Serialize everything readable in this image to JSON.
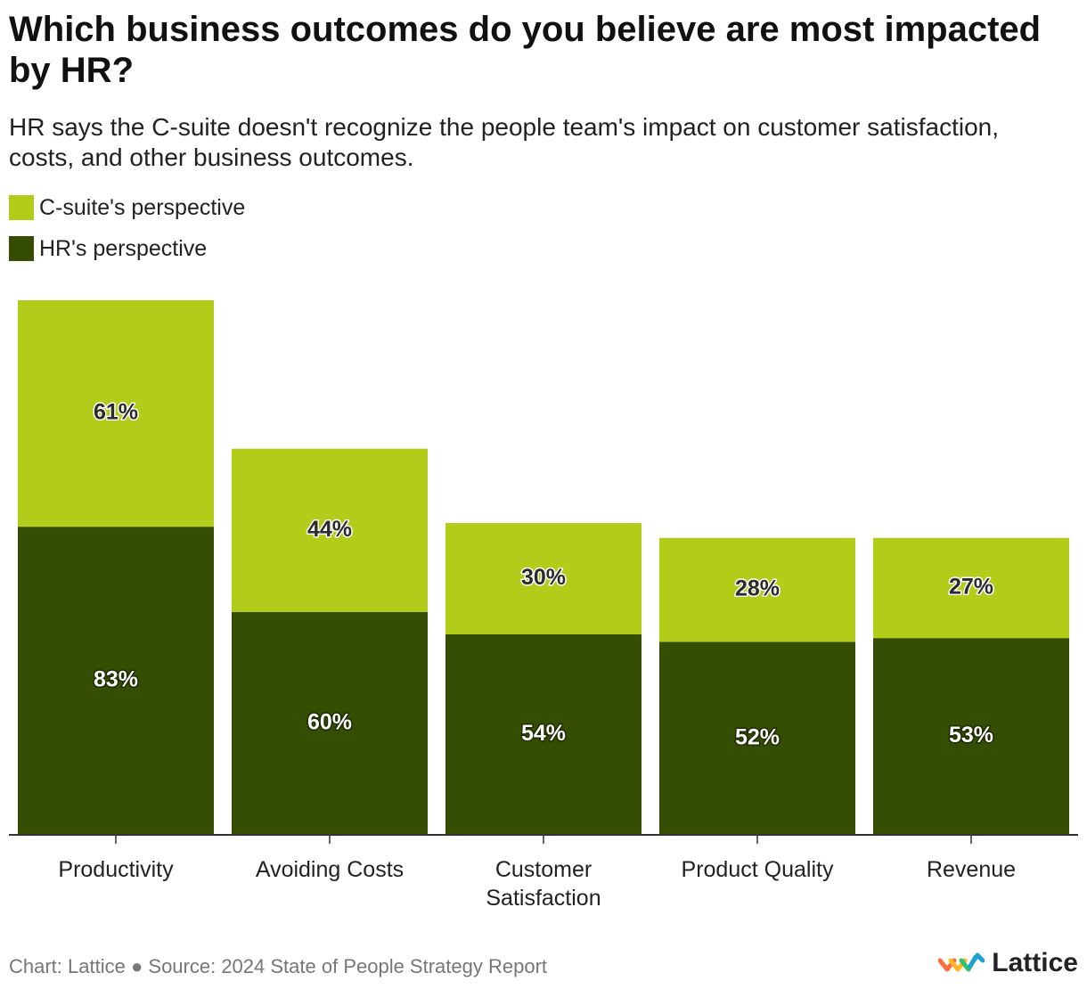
{
  "header": {
    "title": "Which business outcomes do you believe are most impacted by HR?",
    "subtitle": "HR says the C-suite doesn't recognize the people team's impact on customer satisfaction, costs, and other business outcomes."
  },
  "legend": {
    "csuite": {
      "label": "C-suite's perspective",
      "color": "#b3cc1a"
    },
    "hr": {
      "label": "HR's perspective",
      "color": "#344d00"
    }
  },
  "footer": {
    "credit": "Chart: Lattice",
    "separator": "●",
    "source": "Source: 2024 State of People Strategy Report"
  },
  "logo": {
    "text": "Lattice",
    "icon": "lattice-logo-icon"
  },
  "chart_data": {
    "type": "bar",
    "stacked": true,
    "title": "Which business outcomes do you believe are most impacted by HR?",
    "categories": [
      [
        "Productivity"
      ],
      [
        "Avoiding Costs"
      ],
      [
        "Customer",
        "Satisfaction"
      ],
      [
        "Product Quality"
      ],
      [
        "Revenue"
      ]
    ],
    "series": [
      {
        "name": "HR's perspective",
        "color": "#344d00",
        "label_color": "#ffffff",
        "label_stroke": "#1e2a00",
        "values": [
          83,
          60,
          54,
          52,
          53
        ],
        "labels": [
          "83%",
          "60%",
          "54%",
          "52%",
          "53%"
        ]
      },
      {
        "name": "C-suite's perspective",
        "color": "#b3cc1a",
        "label_color": "#2b2b2b",
        "label_stroke": "#ffffff",
        "values": [
          61,
          44,
          30,
          28,
          27
        ],
        "labels": [
          "61%",
          "44%",
          "30%",
          "28%",
          "27%"
        ]
      }
    ],
    "ylim": [
      0,
      144
    ],
    "xlabel": "",
    "ylabel": "",
    "grid": false,
    "legend_position": "top-left"
  }
}
